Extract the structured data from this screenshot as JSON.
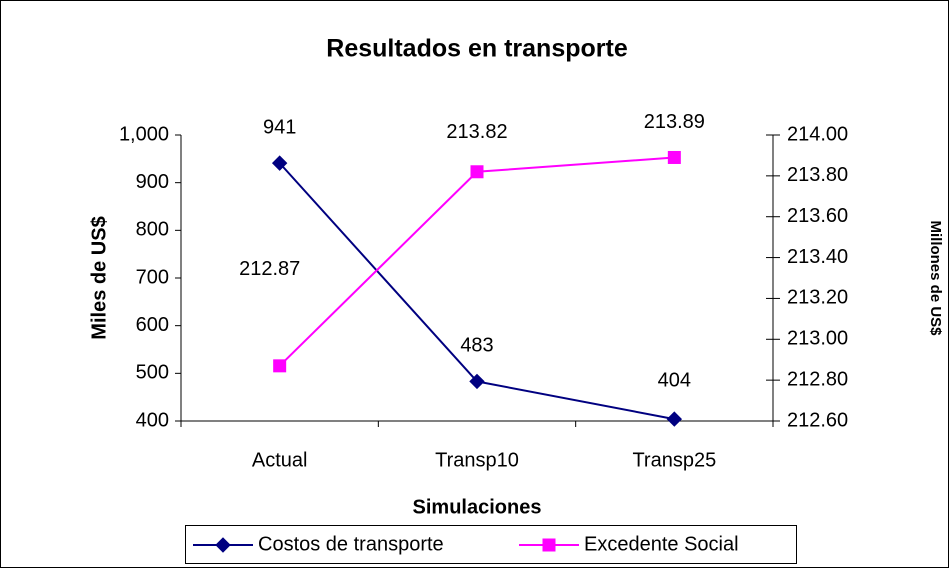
{
  "chart_data": {
    "type": "line",
    "title": "Resultados en transporte",
    "xlabel": "Simulaciones",
    "ylabel": "Miles de US$",
    "y2label": "Millones de US$",
    "categories": [
      "Actual",
      "Transp10",
      "Transp25"
    ],
    "series": [
      {
        "name": "Costos de transporte",
        "color": "#000080",
        "marker": "diamond",
        "values": [
          941,
          483,
          404
        ]
      },
      {
        "name": "Excedente Social",
        "color": "#ff00ff",
        "marker": "square",
        "axis": "y2",
        "values": [
          212.87,
          213.82,
          213.89
        ]
      }
    ],
    "ylim": [
      400,
      1000
    ],
    "yticks": [
      400,
      500,
      600,
      700,
      800,
      900,
      {
        "value": 1000,
        "label": "1,000"
      }
    ],
    "y2lim": [
      212.6,
      214.0
    ],
    "y2ticks": [
      {
        "value": 212.6,
        "label": "212.60"
      },
      {
        "value": 212.8,
        "label": "212.80"
      },
      {
        "value": 213.0,
        "label": "213.00"
      },
      {
        "value": 213.2,
        "label": "213.20"
      },
      {
        "value": 213.4,
        "label": "213.40"
      },
      {
        "value": 213.6,
        "label": "213.60"
      },
      {
        "value": 213.8,
        "label": "213.80"
      },
      {
        "value": 214.0,
        "label": "214.00"
      }
    ],
    "legend": "bottom",
    "grid": false
  }
}
